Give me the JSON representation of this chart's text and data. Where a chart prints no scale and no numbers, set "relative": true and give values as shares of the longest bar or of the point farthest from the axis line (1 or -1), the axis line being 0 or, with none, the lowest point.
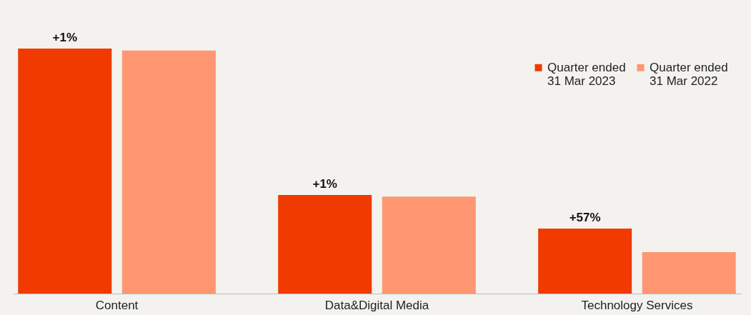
{
  "chart_data": {
    "type": "bar",
    "relative": true,
    "categories": [
      "Content",
      "Data&Digital Media",
      "Technology Services"
    ],
    "series": [
      {
        "name": "Quarter ended 31 Mar 2023",
        "color": "#f03a00",
        "values": [
          1,
          0.402,
          0.265
        ]
      },
      {
        "name": "Quarter ended 31 Mar 2022",
        "color": "#ff9672",
        "values": [
          0.992,
          0.396,
          0.169
        ]
      }
    ],
    "annotations": [
      "+1%",
      "+1%",
      "+57%"
    ],
    "legend": "top right"
  }
}
